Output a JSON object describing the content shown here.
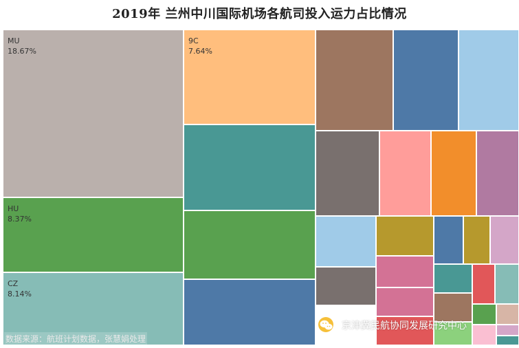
{
  "title": "2019年 兰州中川国际机场各航司投入运力占比情况",
  "source_note": "数据来源：航班计划数据，张慧娟处理",
  "watermark": "京津冀民航协同发展研究中心",
  "watermark_icon": "wechat-icon",
  "chart_data": {
    "type": "treemap",
    "title": "2019年 兰州中川国际机场各航司投入运力占比情况",
    "labeled_items": [
      {
        "name": "MU",
        "value_label": "18.67%",
        "value": 18.67,
        "color": "#bab0ac"
      },
      {
        "name": "9C",
        "value_label": "7.64%",
        "value": 7.64,
        "color": "#ffbe7d"
      },
      {
        "name": "HU",
        "value_label": "8.37%",
        "value": 8.37,
        "color": "#59a14f"
      },
      {
        "name": "CZ",
        "value_label": "8.14%",
        "value": 8.14,
        "color": "#86bcb6"
      }
    ],
    "unlabeled_item_colors": [
      "#499894",
      "#59a14f",
      "#4e79a7",
      "#9d7660",
      "#4e79a7",
      "#a0cbe8",
      "#79706e",
      "#ff9d9a",
      "#f28e2b",
      "#b07aa1",
      "#a0cbe8",
      "#b6992d",
      "#4e79a7",
      "#b6992d",
      "#d4a6c8",
      "#79706e",
      "#d37295",
      "#499894",
      "#e15759",
      "#86bcb6",
      "#d37295",
      "#9d7660",
      "#59a14f",
      "#d7b5a6",
      "#e15759",
      "#8cd17d",
      "#fabfd2",
      "#d4a6c8",
      "#499894"
    ]
  }
}
